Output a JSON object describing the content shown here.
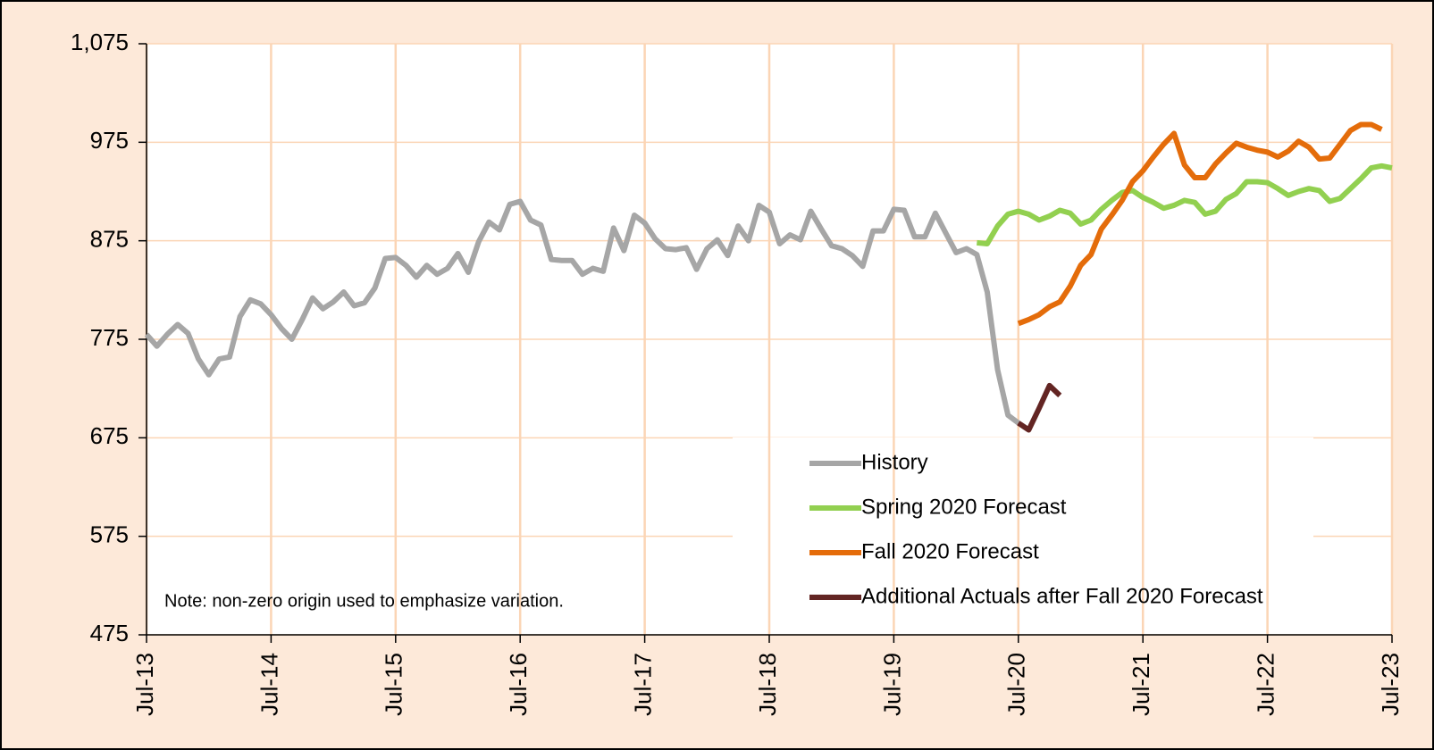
{
  "chart_data": {
    "type": "line",
    "note": "Note: non-zero origin used to emphasize variation.",
    "ylim": [
      475,
      1075
    ],
    "yticks": [
      475,
      575,
      675,
      775,
      875,
      975,
      {
        "value": 1075,
        "label": "1,075"
      }
    ],
    "xlim": [
      "2013-07",
      "2023-07"
    ],
    "xticks": [
      {
        "value": "2013-07",
        "label": "Jul-13"
      },
      {
        "value": "2014-07",
        "label": "Jul-14"
      },
      {
        "value": "2015-07",
        "label": "Jul-15"
      },
      {
        "value": "2016-07",
        "label": "Jul-16"
      },
      {
        "value": "2017-07",
        "label": "Jul-17"
      },
      {
        "value": "2018-07",
        "label": "Jul-18"
      },
      {
        "value": "2019-07",
        "label": "Jul-19"
      },
      {
        "value": "2020-07",
        "label": "Jul-20"
      },
      {
        "value": "2021-07",
        "label": "Jul-21"
      },
      {
        "value": "2022-07",
        "label": "Jul-22"
      },
      {
        "value": "2023-07",
        "label": "Jul-23"
      }
    ],
    "grid": true,
    "legend": "lower right",
    "series": [
      {
        "name": "History",
        "color": "#a6a6a6",
        "x": [
          "2013-07",
          "2013-08",
          "2013-09",
          "2013-10",
          "2013-11",
          "2013-12",
          "2014-01",
          "2014-02",
          "2014-03",
          "2014-04",
          "2014-05",
          "2014-06",
          "2014-07",
          "2014-08",
          "2014-09",
          "2014-10",
          "2014-11",
          "2014-12",
          "2015-01",
          "2015-02",
          "2015-03",
          "2015-04",
          "2015-05",
          "2015-06",
          "2015-07",
          "2015-08",
          "2015-09",
          "2015-10",
          "2015-11",
          "2015-12",
          "2016-01",
          "2016-02",
          "2016-03",
          "2016-04",
          "2016-05",
          "2016-06",
          "2016-07",
          "2016-08",
          "2016-09",
          "2016-10",
          "2016-11",
          "2016-12",
          "2017-01",
          "2017-02",
          "2017-03",
          "2017-04",
          "2017-05",
          "2017-06",
          "2017-07",
          "2017-08",
          "2017-09",
          "2017-10",
          "2017-11",
          "2017-12",
          "2018-01",
          "2018-02",
          "2018-03",
          "2018-04",
          "2018-05",
          "2018-06",
          "2018-07",
          "2018-08",
          "2018-09",
          "2018-10",
          "2018-11",
          "2018-12",
          "2019-01",
          "2019-02",
          "2019-03",
          "2019-04",
          "2019-05",
          "2019-06",
          "2019-07",
          "2019-08",
          "2019-09",
          "2019-10",
          "2019-11",
          "2019-12",
          "2020-01",
          "2020-02",
          "2020-03",
          "2020-04",
          "2020-05",
          "2020-06",
          "2020-07"
        ],
        "values": [
          780,
          768,
          780,
          790,
          781,
          755,
          739,
          755,
          757,
          798,
          815,
          811,
          800,
          786,
          775,
          795,
          817,
          806,
          813,
          823,
          809,
          812,
          827,
          857,
          858,
          850,
          838,
          850,
          841,
          847,
          862,
          843,
          874,
          894,
          886,
          912,
          915,
          896,
          891,
          856,
          855,
          855,
          841,
          847,
          844,
          888,
          865,
          901,
          893,
          877,
          867,
          866,
          868,
          846,
          867,
          876,
          860,
          890,
          875,
          911,
          904,
          872,
          881,
          876,
          905,
          887,
          870,
          867,
          860,
          849,
          885,
          885,
          907,
          906,
          879,
          879,
          903,
          883,
          863,
          867,
          861,
          823,
          744,
          698,
          690
        ]
      },
      {
        "name": "Spring 2020 Forecast",
        "color": "#92d050",
        "x": [
          "2020-03",
          "2020-04",
          "2020-05",
          "2020-06",
          "2020-07",
          "2020-08",
          "2020-09",
          "2020-10",
          "2020-11",
          "2020-12",
          "2021-01",
          "2021-02",
          "2021-03",
          "2021-04",
          "2021-05",
          "2021-06",
          "2021-07",
          "2021-08",
          "2021-09",
          "2021-10",
          "2021-11",
          "2021-12",
          "2022-01",
          "2022-02",
          "2022-03",
          "2022-04",
          "2022-05",
          "2022-06",
          "2022-07",
          "2022-08",
          "2022-09",
          "2022-10",
          "2022-11",
          "2022-12",
          "2023-01",
          "2023-02",
          "2023-03",
          "2023-04",
          "2023-05",
          "2023-06",
          "2023-07"
        ],
        "values": [
          873,
          872,
          890,
          902,
          905,
          902,
          896,
          900,
          906,
          903,
          892,
          896,
          907,
          916,
          924,
          926,
          919,
          914,
          908,
          911,
          916,
          914,
          902,
          905,
          917,
          923,
          935,
          935,
          934,
          928,
          921,
          925,
          928,
          926,
          915,
          918,
          928,
          938,
          949,
          951,
          949
        ]
      },
      {
        "name": "Fall 2020 Forecast",
        "color": "#e46c0a",
        "x": [
          "2020-07",
          "2020-08",
          "2020-09",
          "2020-10",
          "2020-11",
          "2020-12",
          "2021-01",
          "2021-02",
          "2021-03",
          "2021-04",
          "2021-05",
          "2021-06",
          "2021-07",
          "2021-08",
          "2021-09",
          "2021-10",
          "2021-11",
          "2021-12",
          "2022-01",
          "2022-02",
          "2022-03",
          "2022-04",
          "2022-05",
          "2022-06",
          "2022-07",
          "2022-08",
          "2022-09",
          "2022-10",
          "2022-11",
          "2022-12",
          "2023-01",
          "2023-02",
          "2023-03",
          "2023-04",
          "2023-05",
          "2023-06"
        ],
        "values": [
          791,
          795,
          800,
          808,
          813,
          829,
          850,
          861,
          887,
          901,
          916,
          935,
          946,
          960,
          973,
          984,
          952,
          939,
          939,
          953,
          964,
          974,
          970,
          967,
          965,
          960,
          966,
          976,
          970,
          958,
          959,
          973,
          987,
          993,
          993,
          988
        ]
      },
      {
        "name": "Additional Actuals after Fall 2020 Forecast",
        "color": "#632523",
        "x": [
          "2020-07",
          "2020-08",
          "2020-09",
          "2020-10",
          "2020-11"
        ],
        "values": [
          690,
          683,
          705,
          728,
          718
        ]
      }
    ]
  }
}
